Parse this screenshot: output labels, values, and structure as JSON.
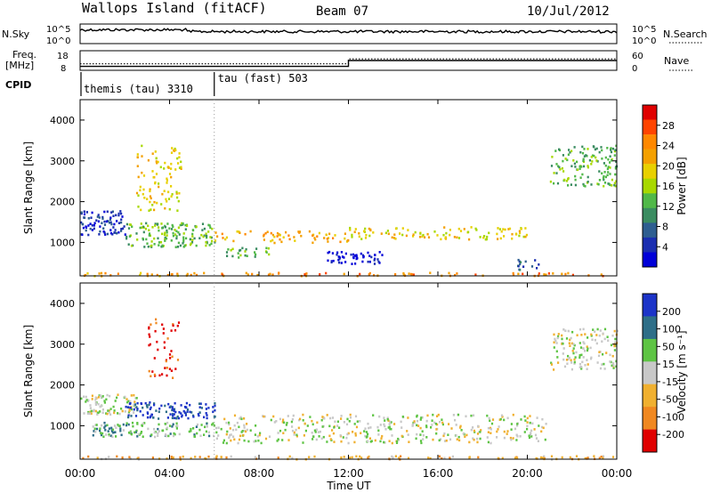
{
  "header": {
    "site": "Wallops Island (fitACF)",
    "beam": "Beam 07",
    "date": "10/Jul/2012"
  },
  "top_panels": {
    "nsky_label": "N.Sky",
    "nsearch_label": "N.Search",
    "log_ticks": [
      "10^5",
      "10^0"
    ],
    "freq_label_1": "Freq.",
    "freq_label_2": "[MHz]",
    "freq_ticks": [
      "18",
      "8"
    ],
    "nave_label": "Nave",
    "nave_ticks": [
      "60",
      "0"
    ],
    "cpid_label": "CPID",
    "cpid_segments": [
      {
        "label": "themis (tau) 3310",
        "start_hour": 0,
        "end_hour": 6
      },
      {
        "label": "tau (fast) 503",
        "start_hour": 6,
        "end_hour": 24
      }
    ],
    "freq_steps": [
      {
        "from_hour": 0,
        "to_hour": 12,
        "mhz": 10
      },
      {
        "from_hour": 12,
        "to_hour": 24,
        "mhz": 13
      }
    ],
    "nave_steps": [
      {
        "from_hour": 0,
        "to_hour": 12,
        "value": 20
      },
      {
        "from_hour": 12,
        "to_hour": 24,
        "value": 35
      }
    ]
  },
  "colorbars": {
    "power": {
      "label": "Power [dB]",
      "ticks": [
        "28",
        "24",
        "20",
        "16",
        "12",
        "8",
        "4"
      ],
      "colors": [
        "#e00000",
        "#ff4400",
        "#ff8800",
        "#f4a000",
        "#e8d000",
        "#a8d800",
        "#50b848",
        "#3a8c60",
        "#2e5e90",
        "#1a2eb0",
        "#0000d8"
      ]
    },
    "velocity": {
      "label": "Velocity [m s⁻¹]",
      "ticks": [
        "200",
        "100",
        "50",
        "15",
        "-15",
        "-50",
        "-100",
        "-200"
      ],
      "colors": [
        "#1c34c8",
        "#2e6e88",
        "#5ec444",
        "#c8c8c8",
        "#f0b030",
        "#f08820",
        "#e00000"
      ]
    }
  },
  "chart_data": [
    {
      "type": "heatmap",
      "title": "Power",
      "ylabel": "Slant Range [km]",
      "yticks": [
        "4000",
        "3000",
        "2000",
        "1000"
      ],
      "ylim": [
        180,
        4500
      ],
      "xlim": [
        0,
        24
      ],
      "regions": [
        {
          "t0": 0.0,
          "t1": 6.0,
          "r0": 200,
          "r1": 280,
          "level": 3,
          "density": 0.7
        },
        {
          "t0": 6.0,
          "t1": 24.0,
          "r0": 200,
          "r1": 280,
          "level": 2,
          "density": 0.5
        },
        {
          "t0": 0.0,
          "t1": 2.0,
          "r0": 1200,
          "r1": 1800,
          "level": 9,
          "density": 0.85
        },
        {
          "t0": 2.0,
          "t1": 6.0,
          "r0": 900,
          "r1": 1500,
          "level": 6,
          "density": 0.75
        },
        {
          "t0": 2.5,
          "t1": 4.5,
          "r0": 1800,
          "r1": 3400,
          "level": 4,
          "density": 0.35
        },
        {
          "t0": 6.5,
          "t1": 8.5,
          "r0": 650,
          "r1": 900,
          "level": 6,
          "density": 0.6
        },
        {
          "t0": 6.0,
          "t1": 9.0,
          "r0": 1050,
          "r1": 1300,
          "level": 3,
          "density": 0.4
        },
        {
          "t0": 8.5,
          "t1": 12.0,
          "r0": 1000,
          "r1": 1300,
          "level": 3,
          "density": 0.45
        },
        {
          "t0": 11.0,
          "t1": 13.5,
          "r0": 500,
          "r1": 800,
          "level": 10,
          "density": 0.85
        },
        {
          "t0": 12.0,
          "t1": 20.0,
          "r0": 1100,
          "r1": 1400,
          "level": 4,
          "density": 0.5
        },
        {
          "t0": 19.5,
          "t1": 20.5,
          "r0": 350,
          "r1": 600,
          "level": 8,
          "density": 0.7
        },
        {
          "t0": 21.0,
          "t1": 24.0,
          "r0": 2400,
          "r1": 3400,
          "level": 6,
          "density": 0.55
        }
      ]
    },
    {
      "type": "heatmap",
      "title": "Velocity",
      "ylabel": "Slant Range [km]",
      "yticks": [
        "4000",
        "3000",
        "2000",
        "1000"
      ],
      "ylim": [
        180,
        4500
      ],
      "xlim": [
        0,
        24
      ],
      "regions": [
        {
          "t0": 0.0,
          "t1": 24.0,
          "r0": 200,
          "r1": 280,
          "level": 4,
          "density": 0.7
        },
        {
          "t0": 0.0,
          "t1": 2.5,
          "r0": 1300,
          "r1": 1800,
          "level": 3,
          "density": 0.85
        },
        {
          "t0": 2.0,
          "t1": 6.0,
          "r0": 1200,
          "r1": 1600,
          "level": 0,
          "density": 0.85
        },
        {
          "t0": 0.5,
          "t1": 6.0,
          "r0": 750,
          "r1": 1100,
          "level": 2,
          "density": 0.85
        },
        {
          "t0": 3.0,
          "t1": 4.5,
          "r0": 2200,
          "r1": 3700,
          "level": 6,
          "density": 0.25
        },
        {
          "t0": 6.0,
          "t1": 21.0,
          "r0": 600,
          "r1": 1300,
          "level": 3,
          "density": 0.45
        },
        {
          "t0": 21.0,
          "t1": 24.0,
          "r0": 2400,
          "r1": 3400,
          "level": 3,
          "density": 0.55
        }
      ]
    }
  ],
  "x_axis": {
    "ticks": [
      "00:00",
      "04:00",
      "08:00",
      "12:00",
      "16:00",
      "20:00",
      "00:00"
    ],
    "label": "Time UT"
  }
}
